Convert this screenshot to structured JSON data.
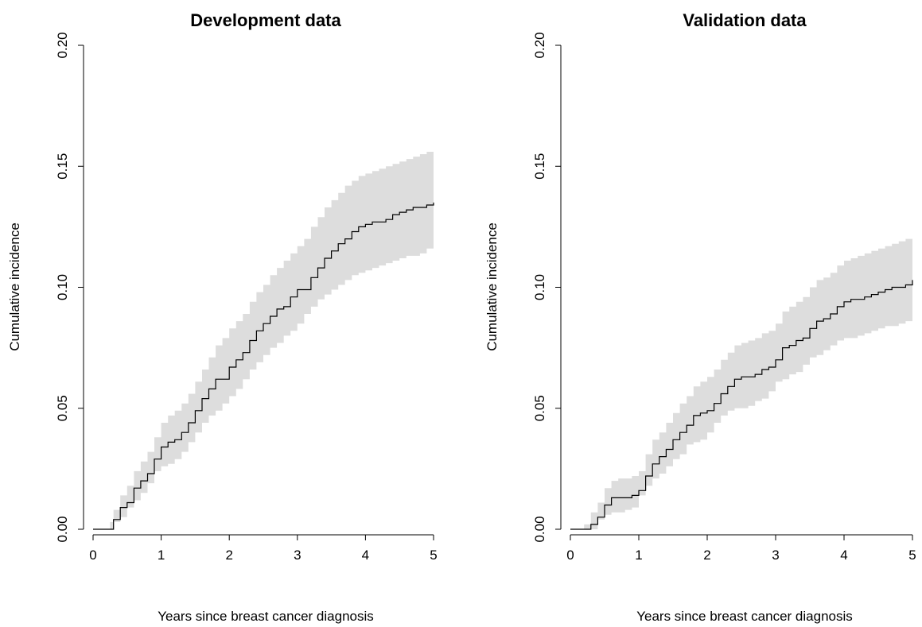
{
  "chart_data": [
    {
      "type": "line",
      "title": "Development data",
      "xlabel": "Years since breast cancer diagnosis",
      "ylabel": "Cumulative incidence",
      "xlim": [
        0,
        5
      ],
      "ylim": [
        0,
        0.2
      ],
      "x_ticks": [
        "0",
        "1",
        "2",
        "3",
        "4",
        "5"
      ],
      "y_ticks": [
        "0.00",
        "0.05",
        "0.10",
        "0.15",
        "0.20"
      ],
      "grid": false,
      "line_color": "#000000",
      "band_color": "#dddddd",
      "series": [
        {
          "x": [
            0.25,
            0.3,
            0.4,
            0.5,
            0.6,
            0.7,
            0.8,
            0.9,
            1.0,
            1.1,
            1.2,
            1.3,
            1.4,
            1.5,
            1.6,
            1.7,
            1.8,
            1.9,
            2.0,
            2.1,
            2.2,
            2.3,
            2.4,
            2.5,
            2.6,
            2.7,
            2.8,
            2.9,
            3.0,
            3.1,
            3.2,
            3.3,
            3.4,
            3.5,
            3.6,
            3.7,
            3.8,
            3.9,
            4.0,
            4.1,
            4.2,
            4.3,
            4.4,
            4.5,
            4.6,
            4.7,
            4.8,
            4.9,
            5.0
          ],
          "estimate": [
            0.0,
            0.004,
            0.009,
            0.011,
            0.017,
            0.02,
            0.023,
            0.029,
            0.034,
            0.036,
            0.037,
            0.04,
            0.044,
            0.049,
            0.054,
            0.058,
            0.062,
            0.062,
            0.067,
            0.07,
            0.073,
            0.078,
            0.082,
            0.085,
            0.088,
            0.091,
            0.092,
            0.096,
            0.099,
            0.099,
            0.104,
            0.108,
            0.112,
            0.115,
            0.118,
            0.12,
            0.123,
            0.125,
            0.126,
            0.127,
            0.127,
            0.128,
            0.13,
            0.131,
            0.132,
            0.133,
            0.133,
            0.134,
            0.135
          ],
          "lower": [
            0.0,
            0.0,
            0.003,
            0.005,
            0.009,
            0.012,
            0.015,
            0.019,
            0.024,
            0.026,
            0.027,
            0.029,
            0.032,
            0.036,
            0.04,
            0.044,
            0.047,
            0.049,
            0.052,
            0.055,
            0.058,
            0.062,
            0.066,
            0.069,
            0.072,
            0.075,
            0.077,
            0.08,
            0.082,
            0.085,
            0.089,
            0.092,
            0.095,
            0.097,
            0.099,
            0.101,
            0.103,
            0.105,
            0.106,
            0.107,
            0.108,
            0.109,
            0.11,
            0.111,
            0.112,
            0.113,
            0.113,
            0.114,
            0.116
          ],
          "upper": [
            0.003,
            0.008,
            0.014,
            0.018,
            0.024,
            0.028,
            0.032,
            0.038,
            0.044,
            0.047,
            0.049,
            0.052,
            0.056,
            0.061,
            0.066,
            0.071,
            0.076,
            0.079,
            0.083,
            0.086,
            0.089,
            0.094,
            0.098,
            0.101,
            0.105,
            0.108,
            0.111,
            0.114,
            0.117,
            0.12,
            0.125,
            0.129,
            0.133,
            0.136,
            0.139,
            0.142,
            0.144,
            0.146,
            0.147,
            0.148,
            0.149,
            0.15,
            0.151,
            0.152,
            0.153,
            0.154,
            0.155,
            0.156,
            0.158
          ]
        }
      ]
    },
    {
      "type": "line",
      "title": "Validation data",
      "xlabel": "Years since breast cancer diagnosis",
      "ylabel": "Cumulative incidence",
      "xlim": [
        0,
        5
      ],
      "ylim": [
        0,
        0.2
      ],
      "x_ticks": [
        "0",
        "1",
        "2",
        "3",
        "4",
        "5"
      ],
      "y_ticks": [
        "0.00",
        "0.05",
        "0.10",
        "0.15",
        "0.20"
      ],
      "grid": false,
      "line_color": "#000000",
      "band_color": "#dddddd",
      "series": [
        {
          "x": [
            0.2,
            0.3,
            0.4,
            0.5,
            0.6,
            0.7,
            0.8,
            0.9,
            1.0,
            1.1,
            1.2,
            1.3,
            1.4,
            1.5,
            1.6,
            1.7,
            1.8,
            1.9,
            2.0,
            2.1,
            2.2,
            2.3,
            2.4,
            2.5,
            2.6,
            2.7,
            2.8,
            2.9,
            3.0,
            3.1,
            3.2,
            3.3,
            3.4,
            3.5,
            3.6,
            3.7,
            3.8,
            3.9,
            4.0,
            4.1,
            4.2,
            4.3,
            4.4,
            4.5,
            4.6,
            4.7,
            4.8,
            4.9,
            5.0
          ],
          "estimate": [
            0.0,
            0.002,
            0.005,
            0.01,
            0.013,
            0.013,
            0.013,
            0.014,
            0.016,
            0.022,
            0.027,
            0.03,
            0.033,
            0.037,
            0.04,
            0.043,
            0.047,
            0.048,
            0.049,
            0.052,
            0.056,
            0.059,
            0.062,
            0.063,
            0.063,
            0.064,
            0.066,
            0.067,
            0.07,
            0.075,
            0.076,
            0.078,
            0.079,
            0.083,
            0.086,
            0.087,
            0.089,
            0.092,
            0.094,
            0.095,
            0.095,
            0.096,
            0.097,
            0.098,
            0.099,
            0.1,
            0.1,
            0.101,
            0.103
          ],
          "lower": [
            0.0,
            0.0,
            0.0,
            0.004,
            0.006,
            0.007,
            0.007,
            0.008,
            0.009,
            0.014,
            0.018,
            0.021,
            0.023,
            0.026,
            0.029,
            0.031,
            0.035,
            0.036,
            0.037,
            0.04,
            0.044,
            0.047,
            0.049,
            0.05,
            0.05,
            0.051,
            0.053,
            0.054,
            0.057,
            0.061,
            0.062,
            0.064,
            0.065,
            0.068,
            0.071,
            0.072,
            0.074,
            0.076,
            0.078,
            0.079,
            0.079,
            0.08,
            0.081,
            0.082,
            0.083,
            0.084,
            0.084,
            0.085,
            0.086
          ],
          "upper": [
            0.002,
            0.007,
            0.011,
            0.017,
            0.02,
            0.021,
            0.021,
            0.022,
            0.024,
            0.031,
            0.037,
            0.04,
            0.044,
            0.048,
            0.052,
            0.055,
            0.059,
            0.061,
            0.063,
            0.066,
            0.07,
            0.073,
            0.076,
            0.077,
            0.078,
            0.079,
            0.081,
            0.082,
            0.085,
            0.09,
            0.092,
            0.094,
            0.096,
            0.1,
            0.103,
            0.104,
            0.106,
            0.109,
            0.111,
            0.112,
            0.113,
            0.114,
            0.115,
            0.116,
            0.117,
            0.118,
            0.119,
            0.12,
            0.121
          ]
        }
      ]
    }
  ]
}
